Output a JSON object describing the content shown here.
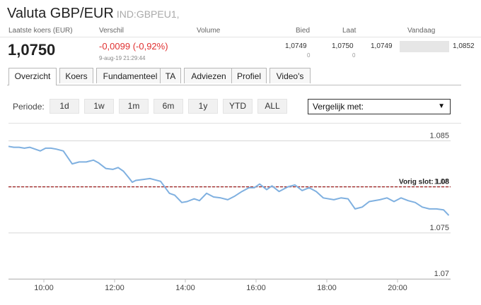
{
  "header": {
    "title": "Valuta GBP/EUR",
    "symbol": "IND:GBPEU1,"
  },
  "stats": {
    "labels": {
      "last": "Laatste koers (EUR)",
      "change": "Verschil",
      "volume": "Volume",
      "bid": "Bied",
      "ask": "Laat",
      "today": "Vandaag"
    },
    "last_price": "1,0750",
    "change": "-0,0099 (-0,92%)",
    "datetime": "9-aug-19 21:29:44",
    "bid": "1,0749",
    "bid_size": "0",
    "ask": "1,0750",
    "ask_size": "0",
    "today_low": "1,0749",
    "today_high": "1,0852"
  },
  "tabs": [
    "Overzicht",
    "Koers",
    "Fundamenteel",
    "TA",
    "Adviezen",
    "Profiel",
    "Video's"
  ],
  "active_tab": "Overzicht",
  "periods": {
    "label": "Periode:",
    "options": [
      "1d",
      "1w",
      "1m",
      "6m",
      "1y",
      "YTD",
      "ALL"
    ]
  },
  "compare": {
    "label": "Vergelijk met:"
  },
  "colors": {
    "line": "#7fb0e0",
    "prev_close": "#9b1c1c",
    "change_negative": "#e03030"
  },
  "chart_data": {
    "type": "line",
    "x_ticks": [
      "10:00",
      "12:00",
      "14:00",
      "16:00",
      "18:00",
      "20:00"
    ],
    "y_ticks": [
      "1.085",
      "1.08",
      "1.075",
      "1.07"
    ],
    "ylim": [
      1.07,
      1.0868
    ],
    "xlim": [
      9.0,
      21.5
    ],
    "prev_close_label": "Vorig slot: 1.08",
    "prev_close_value": 1.08,
    "series": [
      {
        "x": [
          9.0,
          9.15,
          9.3,
          9.45,
          9.6,
          9.75,
          9.9,
          10.05,
          10.2,
          10.35,
          10.55,
          10.8,
          11.0,
          11.2,
          11.4,
          11.55,
          11.75,
          11.95,
          12.1,
          12.25,
          12.4,
          12.5,
          12.6,
          12.8,
          13.0,
          13.1,
          13.3,
          13.55,
          13.7,
          13.9,
          14.05,
          14.25,
          14.4,
          14.6,
          14.8,
          15.0,
          15.2,
          15.4,
          15.6,
          15.8,
          15.95,
          16.1,
          16.3,
          16.45,
          16.65,
          16.9,
          17.1,
          17.3,
          17.5,
          17.7,
          17.9,
          18.2,
          18.4,
          18.6,
          18.8,
          19.0,
          19.2,
          19.5,
          19.7,
          19.9,
          20.1,
          20.3,
          20.5,
          20.7,
          20.9,
          21.1,
          21.3,
          21.45
        ],
        "y": [
          1.0844,
          1.0843,
          1.0843,
          1.0842,
          1.0843,
          1.0841,
          1.0839,
          1.0842,
          1.0842,
          1.0841,
          1.0839,
          1.0825,
          1.0827,
          1.0827,
          1.0829,
          1.0826,
          1.082,
          1.0819,
          1.0821,
          1.0817,
          1.081,
          1.0805,
          1.0807,
          1.0808,
          1.0809,
          1.0808,
          1.0806,
          1.0793,
          1.0791,
          1.0783,
          1.0784,
          1.0787,
          1.0785,
          1.0793,
          1.0789,
          1.0788,
          1.0786,
          1.079,
          1.0795,
          1.0799,
          1.0799,
          1.0803,
          1.0797,
          1.0801,
          1.0795,
          1.08,
          1.0802,
          1.0796,
          1.0799,
          1.0795,
          1.0788,
          1.0786,
          1.0788,
          1.0787,
          1.0776,
          1.0778,
          1.0784,
          1.0786,
          1.0788,
          1.0784,
          1.0788,
          1.0785,
          1.0783,
          1.0778,
          1.0776,
          1.0776,
          1.0775,
          1.0769
        ]
      }
    ]
  }
}
